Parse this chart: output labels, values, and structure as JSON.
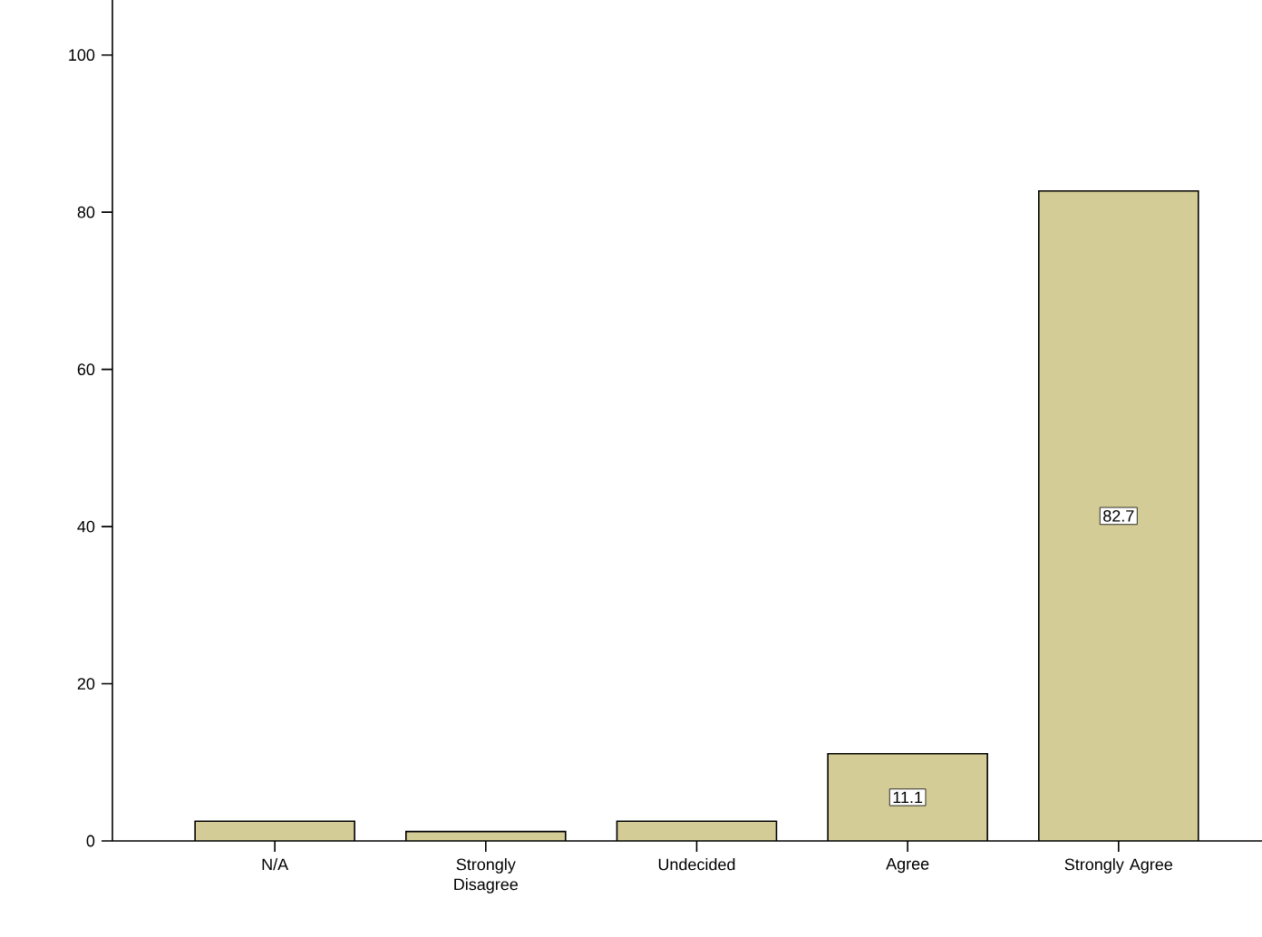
{
  "chart_data": {
    "type": "bar",
    "categories": [
      "N/A",
      "Strongly Disagree",
      "Undecided",
      "Agree",
      "Strongly Agree"
    ],
    "values": [
      2.5,
      1.2,
      2.5,
      11.1,
      82.7
    ],
    "value_labels": [
      null,
      null,
      null,
      "11.1",
      "82.7"
    ],
    "color": "#d4cc96",
    "ylim": [
      0,
      107
    ],
    "yticks": [
      0,
      20,
      40,
      60,
      80,
      100
    ],
    "grid": false
  }
}
